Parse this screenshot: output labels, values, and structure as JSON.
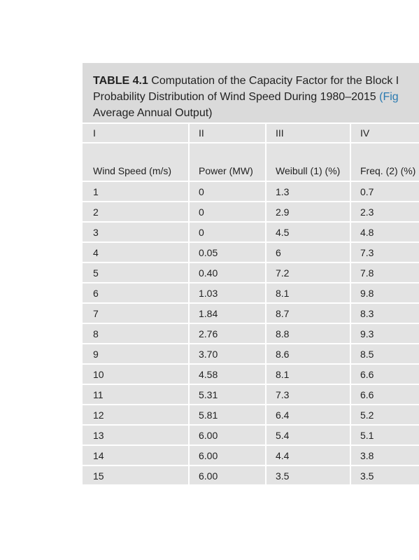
{
  "caption": {
    "label": "TABLE 4.1",
    "lines": [
      "Computation of the Capacity Factor for the Block I",
      "Probability Distribution of Wind Speed During 1980–2015",
      "Average Annual Output)"
    ],
    "link": "(Fig"
  },
  "table": {
    "numerals": [
      "I",
      "II",
      "III",
      "IV"
    ],
    "headers": [
      "Wind Speed (m/s)",
      "Power (MW)",
      "Weibull (1) (%)",
      "Freq. (2) (%)"
    ],
    "rows": [
      [
        "1",
        "0",
        "1.3",
        "0.7"
      ],
      [
        "2",
        "0",
        "2.9",
        "2.3"
      ],
      [
        "3",
        "0",
        "4.5",
        "4.8"
      ],
      [
        "4",
        "0.05",
        "6",
        "7.3"
      ],
      [
        "5",
        "0.40",
        "7.2",
        "7.8"
      ],
      [
        "6",
        "1.03",
        "8.1",
        "9.8"
      ],
      [
        "7",
        "1.84",
        "8.7",
        "8.3"
      ],
      [
        "8",
        "2.76",
        "8.8",
        "9.3"
      ],
      [
        "9",
        "3.70",
        "8.6",
        "8.5"
      ],
      [
        "10",
        "4.58",
        "8.1",
        "6.6"
      ],
      [
        "11",
        "5.31",
        "7.3",
        "6.6"
      ],
      [
        "12",
        "5.81",
        "6.4",
        "5.2"
      ],
      [
        "13",
        "6.00",
        "5.4",
        "5.1"
      ],
      [
        "14",
        "6.00",
        "4.4",
        "3.8"
      ],
      [
        "15",
        "6.00",
        "3.5",
        "3.5"
      ]
    ]
  }
}
